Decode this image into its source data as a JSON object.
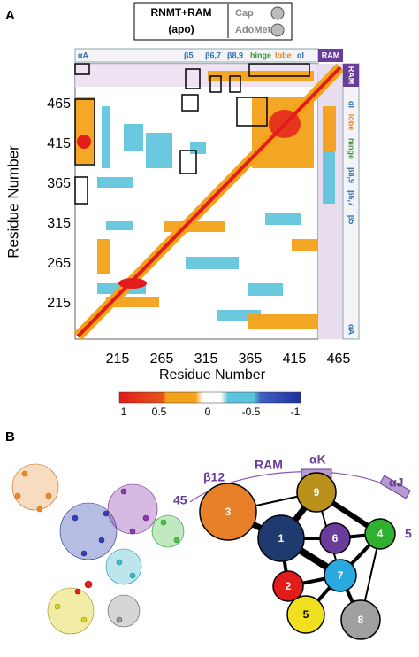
{
  "panel_a": {
    "label": "A",
    "legend": {
      "title": "RNMT+RAM",
      "subtitle": "(apo)",
      "items": [
        "Cap",
        "AdoMet"
      ]
    },
    "top_annotations": [
      "αA",
      "β5",
      "β6,7",
      "β8,9",
      "hinge",
      "lobe",
      "αI",
      "RAM"
    ],
    "right_annotations": [
      "RAM",
      "αI",
      "lobe",
      "hinge",
      "β8,9",
      "β6,7",
      "β5",
      "αA"
    ],
    "y_axis_label": "Residue Number",
    "x_axis_label": "Residue Number",
    "yticks": [
      465,
      415,
      365,
      315,
      265,
      215
    ],
    "xticks": [
      215,
      265,
      315,
      365,
      415,
      465
    ],
    "colorbar_ticks": [
      "1",
      "0.5",
      "0",
      "-0.5",
      "-1"
    ]
  },
  "panel_b": {
    "label": "B",
    "annotations": {
      "beta12": "β12",
      "ram": "RAM",
      "alpha_k": "αK",
      "alpha_j": "αJ",
      "start": "45",
      "end": "5"
    },
    "nodes": [
      "1",
      "2",
      "3",
      "4",
      "5",
      "6",
      "7",
      "8",
      "9"
    ]
  }
}
